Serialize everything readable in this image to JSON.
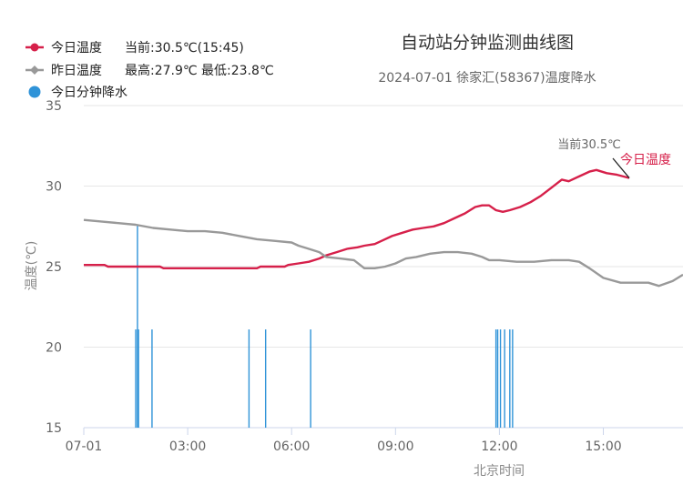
{
  "chart_data": {
    "type": "line",
    "title": "自动站分钟监测曲线图",
    "subtitle": "2024-07-01 徐家汇(58367)温度降水",
    "xlabel": "北京时间",
    "ylabel": "温度(℃)",
    "ylim": [
      15,
      35
    ],
    "xlim_hours": [
      0,
      17.3
    ],
    "y_ticks": [
      "15",
      "20",
      "25",
      "30",
      "35"
    ],
    "x_ticks": [
      {
        "hour": 0,
        "label": "07-01"
      },
      {
        "hour": 3,
        "label": "03:00"
      },
      {
        "hour": 6,
        "label": "06:00"
      },
      {
        "hour": 9,
        "label": "09:00"
      },
      {
        "hour": 12,
        "label": "12:00"
      },
      {
        "hour": 15,
        "label": "15:00"
      }
    ],
    "grid": true,
    "legend_position": "top-left",
    "legend": {
      "today": {
        "label": "今日温度",
        "stats": "当前:30.5℃(15:45)"
      },
      "yesterday": {
        "label": "昨日温度",
        "stats": "最高:27.9℃ 最低:23.8℃"
      },
      "rain": {
        "label": "今日分钟降水"
      }
    },
    "annotation": {
      "text": "当前30.5℃",
      "series_label": "今日温度",
      "hour": 15.75,
      "value": 30.5
    },
    "series": [
      {
        "name": "今日温度",
        "color": "#d6204a",
        "x_hours": [
          0,
          0.6,
          0.7,
          2.2,
          2.3,
          5.0,
          5.1,
          5.8,
          5.9,
          6.2,
          6.5,
          6.8,
          7.0,
          7.3,
          7.6,
          7.9,
          8.1,
          8.4,
          8.6,
          8.9,
          9.2,
          9.5,
          9.8,
          10.1,
          10.4,
          10.7,
          11.0,
          11.3,
          11.5,
          11.7,
          11.9,
          12.1,
          12.3,
          12.6,
          12.9,
          13.2,
          13.5,
          13.8,
          14.0,
          14.3,
          14.6,
          14.8,
          15.1,
          15.4,
          15.75
        ],
        "values": [
          25.1,
          25.1,
          25.0,
          25.0,
          24.9,
          24.9,
          25.0,
          25.0,
          25.1,
          25.2,
          25.3,
          25.5,
          25.7,
          25.9,
          26.1,
          26.2,
          26.3,
          26.4,
          26.6,
          26.9,
          27.1,
          27.3,
          27.4,
          27.5,
          27.7,
          28.0,
          28.3,
          28.7,
          28.8,
          28.8,
          28.5,
          28.4,
          28.5,
          28.7,
          29.0,
          29.4,
          29.9,
          30.4,
          30.3,
          30.6,
          30.9,
          31.0,
          30.8,
          30.7,
          30.5
        ]
      },
      {
        "name": "昨日温度",
        "color": "#999999",
        "x_hours": [
          0,
          0.5,
          1.0,
          1.5,
          2.0,
          2.5,
          3.0,
          3.5,
          4.0,
          4.5,
          5.0,
          5.5,
          6.0,
          6.2,
          6.5,
          6.8,
          7.0,
          7.4,
          7.8,
          8.1,
          8.4,
          8.7,
          9.0,
          9.3,
          9.6,
          10.0,
          10.4,
          10.8,
          11.2,
          11.5,
          11.7,
          12.0,
          12.5,
          13.0,
          13.5,
          14.0,
          14.3,
          14.6,
          15.0,
          15.5,
          16.0,
          16.3,
          16.6,
          17.0,
          17.3
        ],
        "values": [
          27.9,
          27.8,
          27.7,
          27.6,
          27.4,
          27.3,
          27.2,
          27.2,
          27.1,
          26.9,
          26.7,
          26.6,
          26.5,
          26.3,
          26.1,
          25.9,
          25.6,
          25.5,
          25.4,
          24.9,
          24.9,
          25.0,
          25.2,
          25.5,
          25.6,
          25.8,
          25.9,
          25.9,
          25.8,
          25.6,
          25.4,
          25.4,
          25.3,
          25.3,
          25.4,
          25.4,
          25.3,
          24.9,
          24.3,
          24.0,
          24.0,
          24.0,
          23.8,
          24.1,
          24.5
        ]
      },
      {
        "name": "今日分钟降水",
        "type": "bar",
        "color": "#2f93d8",
        "x_hours": [
          1.5,
          1.55,
          1.58,
          1.97,
          4.77,
          5.25,
          6.55,
          11.9,
          11.95,
          12.03,
          12.15,
          12.3,
          12.38
        ],
        "values": [
          21.1,
          27.6,
          21.1,
          21.1,
          21.1,
          21.1,
          21.1,
          21.1,
          21.1,
          21.1,
          21.1,
          21.1,
          21.1
        ]
      }
    ]
  }
}
